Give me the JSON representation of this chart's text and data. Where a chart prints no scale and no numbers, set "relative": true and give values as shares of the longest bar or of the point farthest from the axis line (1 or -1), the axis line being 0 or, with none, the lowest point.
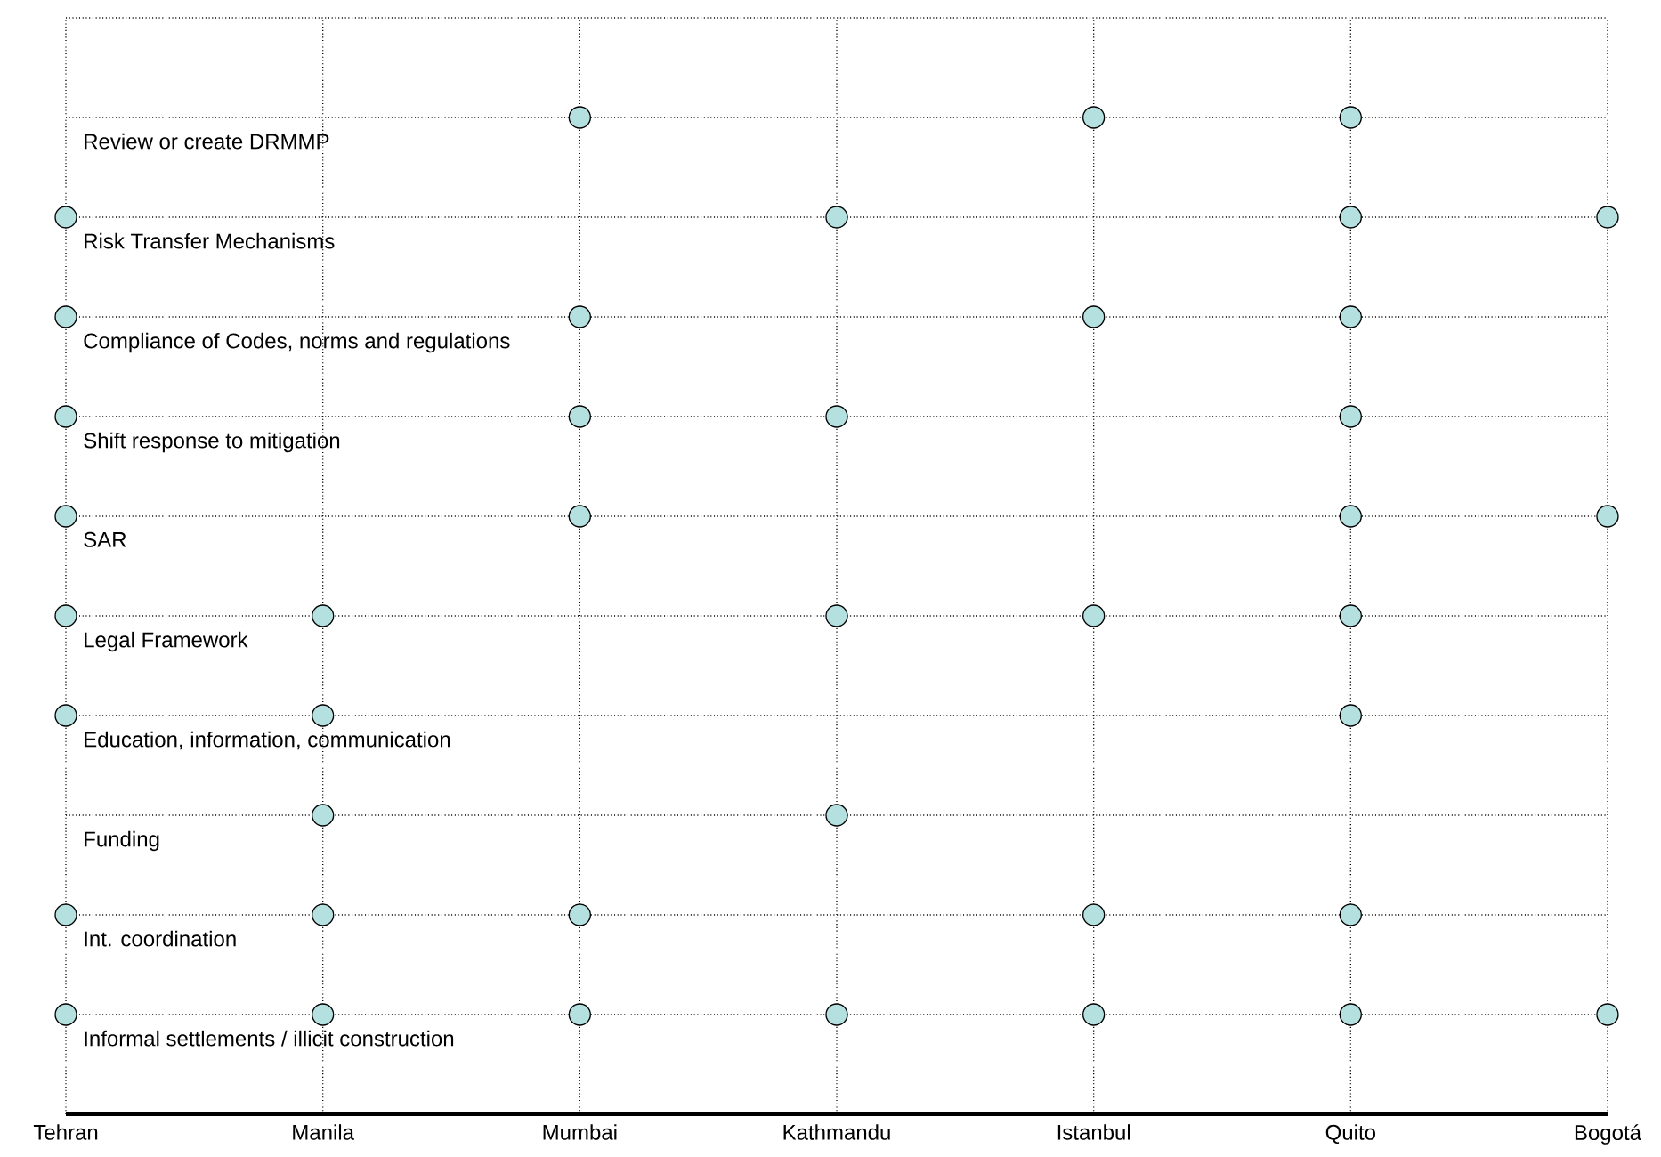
{
  "chart_data": {
    "type": "scatter",
    "categories": [
      "Tehran",
      "Manila",
      "Mumbai",
      "Kathmandu",
      "Istanbul",
      "Quito",
      "Bogotá"
    ],
    "series": [
      {
        "color": "#b4e0e0",
        "x": [
          "Mumbai",
          "Istanbul",
          "Quito",
          "Tehran",
          "Kathmandu",
          "Quito",
          "Bogotá",
          "Tehran",
          "Mumbai",
          "Istanbul",
          "Quito",
          "Tehran",
          "Mumbai",
          "Kathmandu",
          "Quito",
          "Tehran",
          "Mumbai",
          "Quito",
          "Bogotá",
          "Tehran",
          "Manila",
          "Kathmandu",
          "Istanbul",
          "Quito",
          "Tehran",
          "Manila",
          "Quito",
          "Manila",
          "Kathmandu",
          "Tehran",
          "Manila",
          "Mumbai",
          "Istanbul",
          "Quito",
          "Tehran",
          "Manila",
          "Mumbai",
          "Kathmandu",
          "Istanbul",
          "Quito",
          "Bogotá"
        ],
        "values": [
          1.0,
          1.0,
          1.0,
          0.9,
          0.9,
          0.9,
          0.9,
          0.8,
          0.8,
          0.8,
          0.8,
          0.7,
          0.7,
          0.7,
          0.7,
          0.6,
          0.6,
          0.6,
          0.6,
          0.5,
          0.5,
          0.5,
          0.5,
          0.5,
          0.4,
          0.4,
          0.4,
          0.3,
          0.3,
          0.2,
          0.2,
          0.2,
          0.2,
          0.2,
          0.1,
          0.1,
          0.1,
          0.1,
          0.1,
          0.1,
          0.1
        ]
      }
    ],
    "relative": true,
    "tick_labels": "x",
    "grid": true,
    "marker": "circle",
    "annotations": [
      "Review or create DRMMP",
      "Risk Transfer Mechanisms",
      "Compliance of Codes, norms and regulations",
      "Shift response to mitigation",
      "SAR",
      "Legal Framework",
      "Education, information, communication",
      "Funding",
      "Int. coordination",
      "Informal settlements / illicit construction"
    ]
  }
}
